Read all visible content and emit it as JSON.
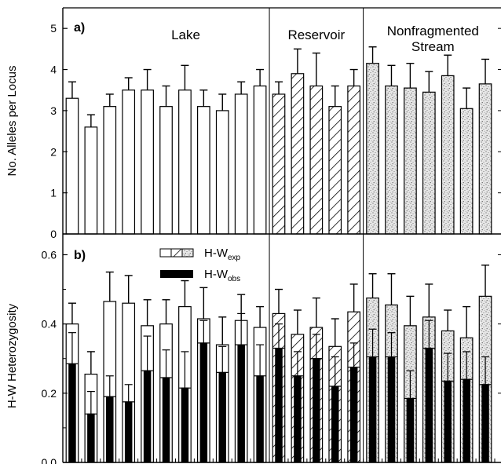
{
  "chart_data": [
    {
      "panel": "a)",
      "type": "bar",
      "ylabel": "No. Alleles per Locus",
      "ylim": [
        0,
        5.5
      ],
      "yticks": [
        "0",
        "1",
        "2",
        "3",
        "4",
        "5"
      ],
      "groups": [
        {
          "label": "Lake",
          "pattern": "open",
          "count": 11
        },
        {
          "label": "Reservoir",
          "pattern": "hatched",
          "count": 5
        },
        {
          "label_lines": [
            "Nonfragmented",
            "Stream"
          ],
          "pattern": "stippled",
          "count": 7
        }
      ],
      "values": [
        3.3,
        2.6,
        3.1,
        3.5,
        3.5,
        3.1,
        3.5,
        3.1,
        3.0,
        3.4,
        3.6,
        3.4,
        3.9,
        3.6,
        3.1,
        3.6,
        4.15,
        3.6,
        3.55,
        3.45,
        3.85,
        3.05,
        3.65
      ],
      "errors": [
        0.4,
        0.3,
        0.3,
        0.3,
        0.5,
        0.5,
        0.6,
        0.4,
        0.4,
        0.3,
        0.4,
        0.3,
        0.6,
        0.8,
        0.5,
        0.4,
        0.4,
        0.5,
        0.6,
        0.5,
        0.5,
        0.5,
        0.6
      ]
    },
    {
      "panel": "b)",
      "type": "bar",
      "ylabel": "H-W Heterozygosity",
      "ylim": [
        0,
        0.66
      ],
      "yticks": [
        "0.0",
        "0.2",
        "0.4",
        "0.6"
      ],
      "legend": [
        {
          "label": "H-W",
          "sub": "exp",
          "swatch": "open-hatched-stippled"
        },
        {
          "label": "H-W",
          "sub": "obs",
          "swatch": "solid"
        }
      ],
      "series": [
        {
          "key": "exp",
          "values": [
            0.4,
            0.255,
            0.465,
            0.46,
            0.395,
            0.4,
            0.45,
            0.415,
            0.34,
            0.41,
            0.39,
            0.43,
            0.37,
            0.39,
            0.335,
            0.435,
            0.475,
            0.455,
            0.395,
            0.42,
            0.38,
            0.36,
            0.48
          ],
          "errors": [
            0.06,
            0.065,
            0.085,
            0.08,
            0.075,
            0.07,
            0.075,
            0.09,
            0.08,
            0.075,
            0.06,
            0.07,
            0.07,
            0.085,
            0.08,
            0.08,
            0.07,
            0.09,
            0.085,
            0.095,
            0.06,
            0.09,
            0.09
          ]
        },
        {
          "key": "obs",
          "values": [
            0.285,
            0.14,
            0.19,
            0.175,
            0.265,
            0.245,
            0.215,
            0.345,
            0.26,
            0.34,
            0.25,
            0.33,
            0.25,
            0.3,
            0.22,
            0.275,
            0.305,
            0.305,
            0.185,
            0.33,
            0.235,
            0.24,
            0.225
          ],
          "errors": [
            0.09,
            0.065,
            0.06,
            0.05,
            0.1,
            0.08,
            0.105,
            0.065,
            0.075,
            0.09,
            0.09,
            0.07,
            0.07,
            0.07,
            0.085,
            0.07,
            0.08,
            0.07,
            0.08,
            0.08,
            0.08,
            0.08,
            0.08
          ]
        }
      ]
    }
  ]
}
